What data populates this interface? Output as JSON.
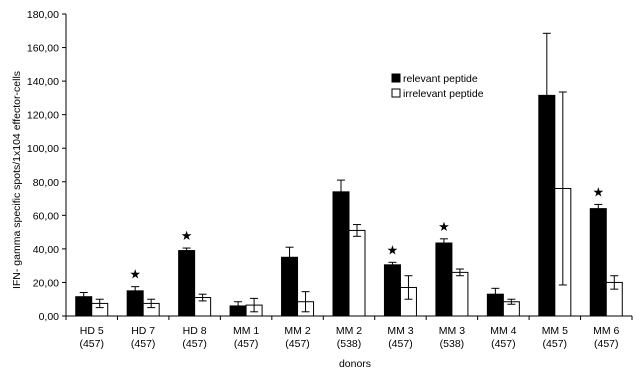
{
  "chart_data": {
    "type": "bar",
    "title": "",
    "xlabel": "donors",
    "ylabel": "IFN- gamma specific spots/1x104 effector-cells",
    "ylim": [
      0,
      180
    ],
    "yticks": [
      "0,00",
      "20,00",
      "40,00",
      "60,00",
      "80,00",
      "100,00",
      "120,00",
      "140,00",
      "160,00",
      "180,00"
    ],
    "categories": [
      [
        "HD 5",
        "(457)"
      ],
      [
        "HD 7",
        "(457)"
      ],
      [
        "HD 8",
        "(457)"
      ],
      [
        "MM 1",
        "(457)"
      ],
      [
        "MM 2",
        "(457)"
      ],
      [
        "MM 2",
        "(538)"
      ],
      [
        "MM 3",
        "(457)"
      ],
      [
        "MM 3",
        "(538)"
      ],
      [
        "MM 4",
        "(457)"
      ],
      [
        "MM 5",
        "(457)"
      ],
      [
        "MM 6",
        "(457)"
      ]
    ],
    "series": [
      {
        "name": "relevant peptide",
        "color": "#000000",
        "values": [
          11.5,
          15,
          39,
          6,
          35,
          74,
          30.5,
          43.5,
          13,
          131.5,
          64
        ],
        "errors": [
          2.5,
          2.5,
          1.5,
          2.5,
          6,
          7,
          1.5,
          2.5,
          3.5,
          37,
          2.5
        ]
      },
      {
        "name": "irrelevant peptide",
        "color": "#ffffff",
        "values": [
          7.5,
          7.5,
          11,
          6.5,
          8.5,
          51,
          17,
          26,
          8.5,
          76,
          20
        ],
        "errors": [
          2.5,
          2.5,
          2,
          4,
          6,
          3.5,
          7,
          2,
          1.5,
          57.5,
          4
        ]
      }
    ],
    "significant": [
      false,
      true,
      true,
      false,
      false,
      false,
      true,
      true,
      false,
      false,
      true
    ],
    "star_symbol": "★",
    "grid": false,
    "legend_position": "top-right"
  }
}
